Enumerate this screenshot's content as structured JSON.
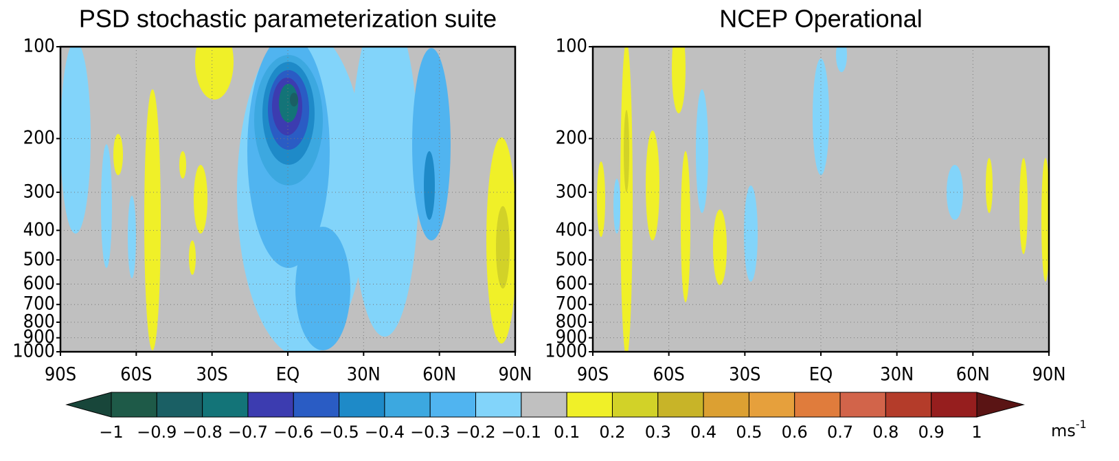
{
  "chart_data": [
    {
      "type": "contour",
      "title": "PSD stochastic parameterization suite",
      "xlim": [
        -90,
        90
      ],
      "xticks": [
        {
          "value": -90,
          "label": "90S"
        },
        {
          "value": -60,
          "label": "60S"
        },
        {
          "value": -30,
          "label": "30S"
        },
        {
          "value": 0,
          "label": "EQ"
        },
        {
          "value": 30,
          "label": "30N"
        },
        {
          "value": 60,
          "label": "60N"
        },
        {
          "value": 90,
          "label": "90N"
        }
      ],
      "ylim": [
        1000,
        100
      ],
      "yticks": [
        100,
        200,
        300,
        400,
        500,
        600,
        700,
        800,
        900,
        1000
      ],
      "ylog": true,
      "grid": true
    },
    {
      "type": "contour",
      "title": "NCEP Operational",
      "xlim": [
        -90,
        90
      ],
      "xticks": [
        {
          "value": -90,
          "label": "90S"
        },
        {
          "value": -60,
          "label": "60S"
        },
        {
          "value": -30,
          "label": "30S"
        },
        {
          "value": 0,
          "label": "EQ"
        },
        {
          "value": 30,
          "label": "30N"
        },
        {
          "value": 60,
          "label": "60N"
        },
        {
          "value": 90,
          "label": "90N"
        }
      ],
      "ylim": [
        1000,
        100
      ],
      "yticks": [
        100,
        200,
        300,
        400,
        500,
        600,
        700,
        800,
        900,
        1000
      ],
      "ylog": true,
      "grid": true
    }
  ],
  "colorbar": {
    "levels": [
      {
        "value": -1,
        "label": "−1"
      },
      {
        "value": -0.9,
        "label": "−0.9"
      },
      {
        "value": -0.8,
        "label": "−0.8"
      },
      {
        "value": -0.7,
        "label": "−0.7"
      },
      {
        "value": -0.6,
        "label": "−0.6"
      },
      {
        "value": -0.5,
        "label": "−0.5"
      },
      {
        "value": -0.4,
        "label": "−0.4"
      },
      {
        "value": -0.3,
        "label": "−0.3"
      },
      {
        "value": -0.2,
        "label": "−0.2"
      },
      {
        "value": -0.1,
        "label": "−0.1"
      },
      0.1,
      0.2,
      0.3,
      0.4,
      0.5,
      0.6,
      0.7,
      0.8,
      0.9,
      1
    ],
    "colors": [
      "#18463a",
      "#1e5a48",
      "#1a5f64",
      "#137478",
      "#3c3cb0",
      "#2a5cc4",
      "#1e8ac8",
      "#3ca8e0",
      "#50b4f0",
      "#82d4fa",
      "#c0c0c0",
      "#f0f028",
      "#d2d228",
      "#c8b428",
      "#dca032",
      "#e6a03c",
      "#e07c3c",
      "#d2644a",
      "#b43c2a",
      "#961e1e",
      "#5a1414"
    ],
    "unit": "ms",
    "unit_exponent": "-1"
  }
}
